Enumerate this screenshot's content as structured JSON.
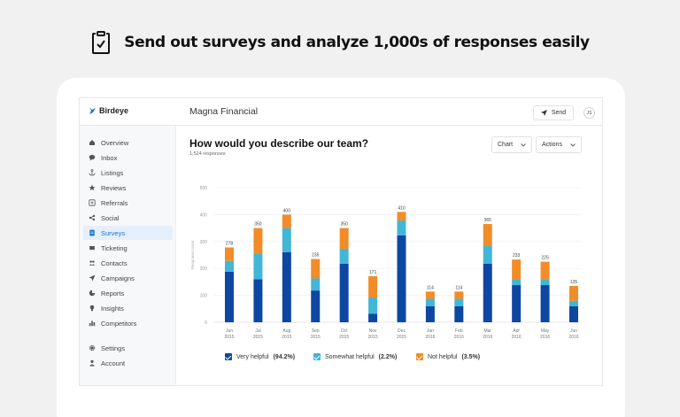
{
  "headline": {
    "text": "Send out surveys and analyze 1,000s of responses easily"
  },
  "app": {
    "brand": "Birdeye",
    "company": "Magna Financial",
    "send_label": "Send",
    "avatar": "JS"
  },
  "sidebar": {
    "items": [
      {
        "label": "Overview",
        "icon": "home-icon"
      },
      {
        "label": "Inbox",
        "icon": "chat-icon"
      },
      {
        "label": "Listings",
        "icon": "anchor-icon"
      },
      {
        "label": "Reviews",
        "icon": "star-icon"
      },
      {
        "label": "Referrals",
        "icon": "referral-icon"
      },
      {
        "label": "Social",
        "icon": "social-icon"
      },
      {
        "label": "Surveys",
        "icon": "survey-icon"
      },
      {
        "label": "Ticketing",
        "icon": "ticket-icon"
      },
      {
        "label": "Contacts",
        "icon": "contacts-icon"
      },
      {
        "label": "Campaigns",
        "icon": "send-icon"
      },
      {
        "label": "Reports",
        "icon": "pie-icon"
      },
      {
        "label": "Insights",
        "icon": "bulb-icon"
      },
      {
        "label": "Competitors",
        "icon": "bar-chart-icon"
      }
    ],
    "active": "Surveys",
    "bottom": [
      {
        "label": "Settings",
        "icon": "gear-icon"
      },
      {
        "label": "Account",
        "icon": "user-icon"
      }
    ]
  },
  "main": {
    "question": "How would you describe our team?",
    "responses": "1,524 responses",
    "chart_dropdown": "Chart",
    "actions_dropdown": "Actions"
  },
  "colors": {
    "very": "#0d47a1",
    "somewhat": "#42b6d6",
    "not": "#f28c28",
    "active_nav": "#1976d2"
  },
  "chart_data": {
    "type": "bar",
    "stacked": true,
    "ylabel": "Response count",
    "ylim": [
      0,
      500
    ],
    "yticks": [
      0,
      100,
      200,
      300,
      400,
      500
    ],
    "categories": [
      [
        "Jun",
        "2015"
      ],
      [
        "Jul",
        "2015"
      ],
      [
        "Aug",
        "2015"
      ],
      [
        "Sep",
        "2015"
      ],
      [
        "Oct",
        "2015"
      ],
      [
        "Nov",
        "2015"
      ],
      [
        "Dec",
        "2015"
      ],
      [
        "Jan",
        "2016"
      ],
      [
        "Feb",
        "2016"
      ],
      [
        "Mar",
        "2016"
      ],
      [
        "Apr",
        "2016"
      ],
      [
        "May",
        "2016"
      ],
      [
        "Jun",
        "2016"
      ]
    ],
    "totals": [
      278,
      350,
      400,
      235,
      350,
      171,
      410,
      114,
      114,
      365,
      233,
      225,
      135
    ],
    "series": [
      {
        "name": "Very helpful",
        "pct": "(94.2%)",
        "values": [
          188,
          160,
          260,
          118,
          218,
          32,
          323,
          60,
          60,
          218,
          138,
          138,
          60
        ]
      },
      {
        "name": "Somewhat helpful",
        "pct": "(2.2%)",
        "values": [
          40,
          95,
          90,
          45,
          55,
          60,
          55,
          27,
          27,
          65,
          20,
          20,
          20
        ]
      },
      {
        "name": "Not helpful",
        "pct": "(3.5%)",
        "values": [
          50,
          95,
          50,
          72,
          77,
          79,
          32,
          27,
          27,
          82,
          75,
          67,
          55
        ]
      }
    ],
    "legend_position": "bottom"
  }
}
